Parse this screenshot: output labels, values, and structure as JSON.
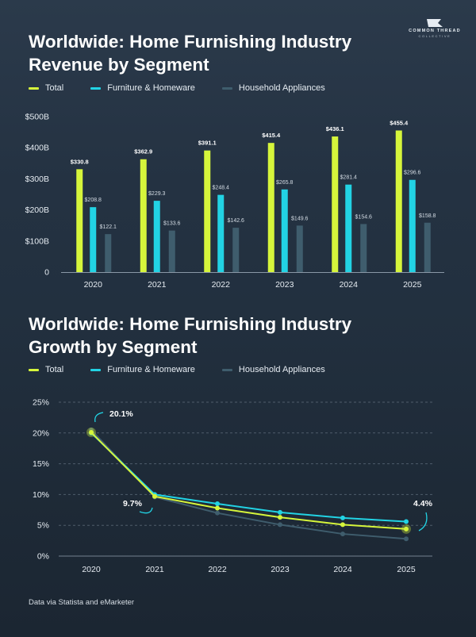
{
  "brand": {
    "line1": "COMMON THREAD",
    "line2": "COLLECTIVE"
  },
  "colors": {
    "total": "#d6f53b",
    "furniture": "#22d3e4",
    "appliances": "#3f5d6d",
    "grid": "#5b6a78",
    "axis_text": "#e6ecf2"
  },
  "footer": {
    "source": "Data via Statista  and eMarketer"
  },
  "chart_data": [
    {
      "type": "bar",
      "title": "Worldwide: Home Furnishing Industry Revenue by Segment",
      "legend": [
        "Total",
        "Furniture & Homeware",
        "Household Appliances"
      ],
      "legend_placement": "top-left",
      "categories": [
        "2020",
        "2021",
        "2022",
        "2023",
        "2024",
        "2025"
      ],
      "series": [
        {
          "name": "Total",
          "values": [
            330.8,
            362.9,
            391.1,
            415.4,
            436.1,
            455.4
          ],
          "labels": [
            "$330.8",
            "$362.9",
            "$391.1",
            "$415.4",
            "$436.1",
            "$455.4"
          ]
        },
        {
          "name": "Furniture & Homeware",
          "values": [
            208.8,
            229.3,
            248.4,
            265.8,
            281.4,
            296.6
          ],
          "labels": [
            "$208.8",
            "$229.3",
            "$248.4",
            "$265.8",
            "$281.4",
            "$296.6"
          ]
        },
        {
          "name": "Household Appliances",
          "values": [
            122.1,
            133.6,
            142.6,
            149.6,
            154.6,
            158.8
          ],
          "labels": [
            "$122.1",
            "$133.6",
            "$142.6",
            "$149.6",
            "$154.6",
            "$158.8"
          ]
        }
      ],
      "ylim": [
        0,
        500
      ],
      "yticks": [
        0,
        100,
        200,
        300,
        400,
        500
      ],
      "ytick_labels": [
        "0",
        "$100B",
        "$200B",
        "$300B",
        "$400B",
        "$500B"
      ],
      "grid": false
    },
    {
      "type": "line",
      "title": "Worldwide: Home Furnishing Industry Growth by Segment",
      "legend": [
        "Total",
        "Furniture & Homeware",
        "Household Appliances"
      ],
      "legend_placement": "top-left",
      "categories": [
        "2020",
        "2021",
        "2022",
        "2023",
        "2024",
        "2025"
      ],
      "series": [
        {
          "name": "Total",
          "values": [
            20.1,
            9.7,
            7.8,
            6.3,
            5.1,
            4.4
          ]
        },
        {
          "name": "Furniture & Homeware",
          "values": [
            20.0,
            10.0,
            8.5,
            7.1,
            6.2,
            5.6
          ]
        },
        {
          "name": "Household Appliances",
          "values": [
            20.5,
            9.6,
            7.0,
            5.1,
            3.6,
            2.8
          ]
        }
      ],
      "annotations": [
        {
          "text": "20.1%",
          "category": "2020",
          "series": "Total"
        },
        {
          "text": "9.7%",
          "category": "2021",
          "series": "Total"
        },
        {
          "text": "4.4%",
          "category": "2025",
          "series": "Total"
        }
      ],
      "ylim": [
        0,
        25
      ],
      "yticks": [
        0,
        5,
        10,
        15,
        20,
        25
      ],
      "ytick_labels": [
        "0%",
        "5%",
        "10%",
        "15%",
        "20%",
        "25%"
      ],
      "grid": true
    }
  ]
}
